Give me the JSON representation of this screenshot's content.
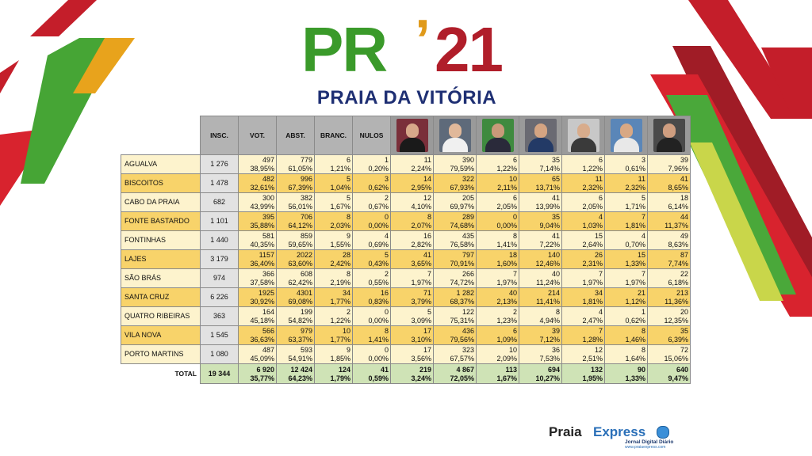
{
  "logo": {
    "pr": "PR",
    "apos": "’",
    "year": "21",
    "subtitle": "PRAIA DA VITÓRIA"
  },
  "colors": {
    "brand_green": "#3a9a2a",
    "brand_red": "#b01e2a",
    "brand_navy": "#1e2f73",
    "row_cream": "#fdf3cd",
    "row_gold": "#f8d36a",
    "total_green": "#cfe3b6",
    "header_gray": "#b3b3b3"
  },
  "headers": {
    "ins": "INSC.",
    "vot": "VOT.",
    "abst": "ABST.",
    "branc": "BRANC.",
    "nulos": "NULOS"
  },
  "candidates": [
    {
      "icon": "candidate-photo-1"
    },
    {
      "icon": "candidate-photo-2"
    },
    {
      "icon": "candidate-photo-3"
    },
    {
      "icon": "candidate-photo-4"
    },
    {
      "icon": "candidate-photo-5"
    },
    {
      "icon": "candidate-photo-6"
    },
    {
      "icon": "candidate-photo-7"
    }
  ],
  "rows": [
    {
      "name": "AGUALVA",
      "ins": "1 276",
      "cells": [
        [
          "497",
          "38,95%"
        ],
        [
          "779",
          "61,05%"
        ],
        [
          "6",
          "1,21%"
        ],
        [
          "1",
          "0,20%"
        ],
        [
          "11",
          "2,24%"
        ],
        [
          "390",
          "79,59%"
        ],
        [
          "6",
          "1,22%"
        ],
        [
          "35",
          "7,14%"
        ],
        [
          "6",
          "1,22%"
        ],
        [
          "3",
          "0,61%"
        ],
        [
          "39",
          "7,96%"
        ]
      ]
    },
    {
      "name": "BISCOITOS",
      "ins": "1 478",
      "cells": [
        [
          "482",
          "32,61%"
        ],
        [
          "996",
          "67,39%"
        ],
        [
          "5",
          "1,04%"
        ],
        [
          "3",
          "0,62%"
        ],
        [
          "14",
          "2,95%"
        ],
        [
          "322",
          "67,93%"
        ],
        [
          "10",
          "2,11%"
        ],
        [
          "65",
          "13,71%"
        ],
        [
          "11",
          "2,32%"
        ],
        [
          "11",
          "2,32%"
        ],
        [
          "41",
          "8,65%"
        ]
      ]
    },
    {
      "name": "CABO DA PRAIA",
      "ins": "682",
      "cells": [
        [
          "300",
          "43,99%"
        ],
        [
          "382",
          "56,01%"
        ],
        [
          "5",
          "1,67%"
        ],
        [
          "2",
          "0,67%"
        ],
        [
          "12",
          "4,10%"
        ],
        [
          "205",
          "69,97%"
        ],
        [
          "6",
          "2,05%"
        ],
        [
          "41",
          "13,99%"
        ],
        [
          "6",
          "2,05%"
        ],
        [
          "5",
          "1,71%"
        ],
        [
          "18",
          "6,14%"
        ]
      ]
    },
    {
      "name": "FONTE BASTARDO",
      "ins": "1 101",
      "cells": [
        [
          "395",
          "35,88%"
        ],
        [
          "706",
          "64,12%"
        ],
        [
          "8",
          "2,03%"
        ],
        [
          "0",
          "0,00%"
        ],
        [
          "8",
          "2,07%"
        ],
        [
          "289",
          "74,68%"
        ],
        [
          "0",
          "0,00%"
        ],
        [
          "35",
          "9,04%"
        ],
        [
          "4",
          "1,03%"
        ],
        [
          "7",
          "1,81%"
        ],
        [
          "44",
          "11,37%"
        ]
      ]
    },
    {
      "name": "FONTINHAS",
      "ins": "1 440",
      "cells": [
        [
          "581",
          "40,35%"
        ],
        [
          "859",
          "59,65%"
        ],
        [
          "9",
          "1,55%"
        ],
        [
          "4",
          "0,69%"
        ],
        [
          "16",
          "2,82%"
        ],
        [
          "435",
          "76,58%"
        ],
        [
          "8",
          "1,41%"
        ],
        [
          "41",
          "7,22%"
        ],
        [
          "15",
          "2,64%"
        ],
        [
          "4",
          "0,70%"
        ],
        [
          "49",
          "8,63%"
        ]
      ]
    },
    {
      "name": "LAJES",
      "ins": "3 179",
      "cells": [
        [
          "1157",
          "36,40%"
        ],
        [
          "2022",
          "63,60%"
        ],
        [
          "28",
          "2,42%"
        ],
        [
          "5",
          "0,43%"
        ],
        [
          "41",
          "3,65%"
        ],
        [
          "797",
          "70,91%"
        ],
        [
          "18",
          "1,60%"
        ],
        [
          "140",
          "12,46%"
        ],
        [
          "26",
          "2,31%"
        ],
        [
          "15",
          "1,33%"
        ],
        [
          "87",
          "7,74%"
        ]
      ]
    },
    {
      "name": "SÃO BRÁS",
      "ins": "974",
      "cells": [
        [
          "366",
          "37,58%"
        ],
        [
          "608",
          "62,42%"
        ],
        [
          "8",
          "2,19%"
        ],
        [
          "2",
          "0,55%"
        ],
        [
          "7",
          "1,97%"
        ],
        [
          "266",
          "74,72%"
        ],
        [
          "7",
          "1,97%"
        ],
        [
          "40",
          "11,24%"
        ],
        [
          "7",
          "1,97%"
        ],
        [
          "7",
          "1,97%"
        ],
        [
          "22",
          "6,18%"
        ]
      ]
    },
    {
      "name": "SANTA CRUZ",
      "ins": "6 226",
      "cells": [
        [
          "1925",
          "30,92%"
        ],
        [
          "4301",
          "69,08%"
        ],
        [
          "34",
          "1,77%"
        ],
        [
          "16",
          "0,83%"
        ],
        [
          "71",
          "3,79%"
        ],
        [
          "1 282",
          "68,37%"
        ],
        [
          "40",
          "2,13%"
        ],
        [
          "214",
          "11,41%"
        ],
        [
          "34",
          "1,81%"
        ],
        [
          "21",
          "1,12%"
        ],
        [
          "213",
          "11,36%"
        ]
      ]
    },
    {
      "name": "QUATRO RIBEIRAS",
      "ins": "363",
      "cells": [
        [
          "164",
          "45,18%"
        ],
        [
          "199",
          "54,82%"
        ],
        [
          "2",
          "1,22%"
        ],
        [
          "0",
          "0,00%"
        ],
        [
          "5",
          "3,09%"
        ],
        [
          "122",
          "75,31%"
        ],
        [
          "2",
          "1,23%"
        ],
        [
          "8",
          "4,94%"
        ],
        [
          "4",
          "2,47%"
        ],
        [
          "1",
          "0,62%"
        ],
        [
          "20",
          "12,35%"
        ]
      ]
    },
    {
      "name": "VILA NOVA",
      "ins": "1 545",
      "cells": [
        [
          "566",
          "36,63%"
        ],
        [
          "979",
          "63,37%"
        ],
        [
          "10",
          "1,77%"
        ],
        [
          "8",
          "1,41%"
        ],
        [
          "17",
          "3,10%"
        ],
        [
          "436",
          "79,56%"
        ],
        [
          "6",
          "1,09%"
        ],
        [
          "39",
          "7,12%"
        ],
        [
          "7",
          "1,28%"
        ],
        [
          "8",
          "1,46%"
        ],
        [
          "35",
          "6,39%"
        ]
      ]
    },
    {
      "name": "PORTO MARTINS",
      "ins": "1 080",
      "cells": [
        [
          "487",
          "45,09%"
        ],
        [
          "593",
          "54,91%"
        ],
        [
          "9",
          "1,85%"
        ],
        [
          "0",
          "0,00%"
        ],
        [
          "17",
          "3,56%"
        ],
        [
          "323",
          "67,57%"
        ],
        [
          "10",
          "2,09%"
        ],
        [
          "36",
          "7,53%"
        ],
        [
          "12",
          "2,51%"
        ],
        [
          "8",
          "1,64%"
        ],
        [
          "72",
          "15,06%"
        ]
      ]
    }
  ],
  "total": {
    "label": "TOTAL",
    "ins": "19 344",
    "cells": [
      [
        "6 920",
        "35,77%"
      ],
      [
        "12 424",
        "64,23%"
      ],
      [
        "124",
        "1,79%"
      ],
      [
        "41",
        "0,59%"
      ],
      [
        "219",
        "3,24%"
      ],
      [
        "4 867",
        "72,05%"
      ],
      [
        "113",
        "1,67%"
      ],
      [
        "694",
        "10,27%"
      ],
      [
        "132",
        "1,95%"
      ],
      [
        "90",
        "1,33%"
      ],
      [
        "640",
        "9,47%"
      ]
    ]
  },
  "footer": {
    "brand_a": "Praia",
    "brand_b": "Express",
    "tagline": "Jornal Digital Diário",
    "url": "www.praiaexpress.com"
  }
}
